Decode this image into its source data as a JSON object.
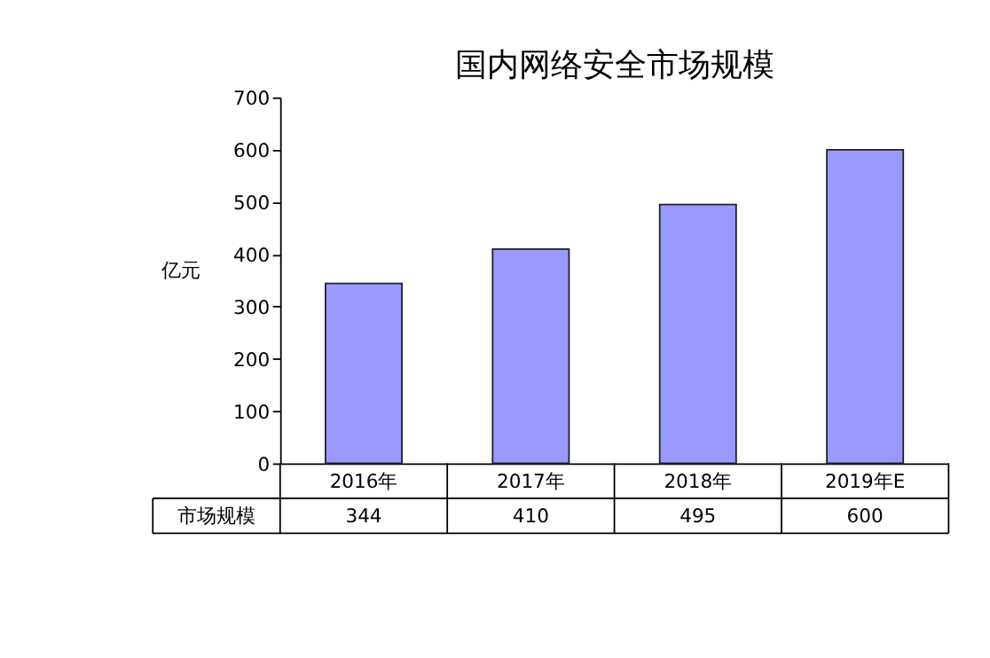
{
  "chart_data": {
    "type": "bar",
    "title": "国内网络安全市场规模",
    "ylabel": "亿元",
    "categories": [
      "2016年",
      "2017年",
      "2018年",
      "2019年E"
    ],
    "series": [
      {
        "name": "市场规模",
        "color": "#9999ff",
        "values": [
          344,
          410,
          495,
          600
        ]
      }
    ],
    "ylim": [
      0,
      700
    ],
    "yticks": [
      0,
      100,
      200,
      300,
      400,
      500,
      600,
      700
    ],
    "grid": false,
    "legend": false,
    "data_labels": true
  }
}
